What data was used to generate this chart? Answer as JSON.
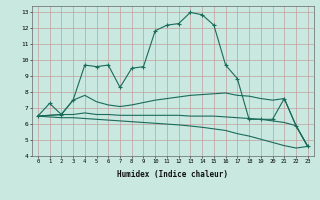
{
  "xlabel": "Humidex (Indice chaleur)",
  "xlim": [
    -0.5,
    23.5
  ],
  "ylim": [
    4,
    13.4
  ],
  "xtick_vals": [
    0,
    1,
    2,
    3,
    4,
    5,
    6,
    7,
    8,
    9,
    10,
    11,
    12,
    13,
    14,
    15,
    16,
    17,
    18,
    19,
    20,
    21,
    22,
    23
  ],
  "ytick_vals": [
    4,
    5,
    6,
    7,
    8,
    9,
    10,
    11,
    12,
    13
  ],
  "bg_color": "#c8e8e0",
  "grid_color": "#c0a0a0",
  "line_color": "#1a6b5a",
  "line1_x": [
    0,
    1,
    2,
    3,
    4,
    5,
    6,
    7,
    8,
    9,
    10,
    11,
    12,
    13,
    14,
    15,
    16,
    17,
    18,
    19,
    20,
    21,
    22,
    23
  ],
  "line1_y": [
    6.5,
    7.3,
    6.6,
    7.5,
    9.7,
    9.6,
    9.7,
    8.3,
    9.5,
    9.6,
    11.85,
    12.2,
    12.3,
    13.0,
    12.85,
    12.2,
    9.7,
    8.85,
    6.3,
    6.3,
    6.3,
    7.6,
    5.9,
    4.6
  ],
  "line2_x": [
    0,
    2,
    3,
    4,
    5,
    6,
    7,
    8,
    9,
    10,
    11,
    12,
    13,
    14,
    15,
    16,
    17,
    18,
    19,
    20,
    21,
    22,
    23
  ],
  "line2_y": [
    6.5,
    6.6,
    7.5,
    7.8,
    7.4,
    7.2,
    7.1,
    7.2,
    7.35,
    7.5,
    7.6,
    7.7,
    7.8,
    7.85,
    7.9,
    7.95,
    7.8,
    7.75,
    7.6,
    7.5,
    7.6,
    5.9,
    4.6
  ],
  "line3_x": [
    0,
    2,
    3,
    4,
    5,
    6,
    7,
    8,
    9,
    10,
    11,
    12,
    13,
    14,
    15,
    16,
    17,
    18,
    19,
    20,
    21,
    22,
    23
  ],
  "line3_y": [
    6.5,
    6.6,
    6.6,
    6.7,
    6.6,
    6.6,
    6.55,
    6.55,
    6.55,
    6.55,
    6.55,
    6.55,
    6.5,
    6.5,
    6.5,
    6.45,
    6.4,
    6.35,
    6.3,
    6.2,
    6.1,
    5.9,
    4.6
  ],
  "line4_x": [
    0,
    1,
    2,
    3,
    4,
    5,
    6,
    7,
    8,
    9,
    10,
    11,
    12,
    13,
    14,
    15,
    16,
    17,
    18,
    19,
    20,
    21,
    22,
    23
  ],
  "line4_y": [
    6.5,
    6.45,
    6.4,
    6.4,
    6.35,
    6.3,
    6.25,
    6.2,
    6.15,
    6.1,
    6.05,
    6.0,
    5.95,
    5.88,
    5.8,
    5.7,
    5.6,
    5.4,
    5.25,
    5.05,
    4.85,
    4.65,
    4.5,
    4.6
  ]
}
